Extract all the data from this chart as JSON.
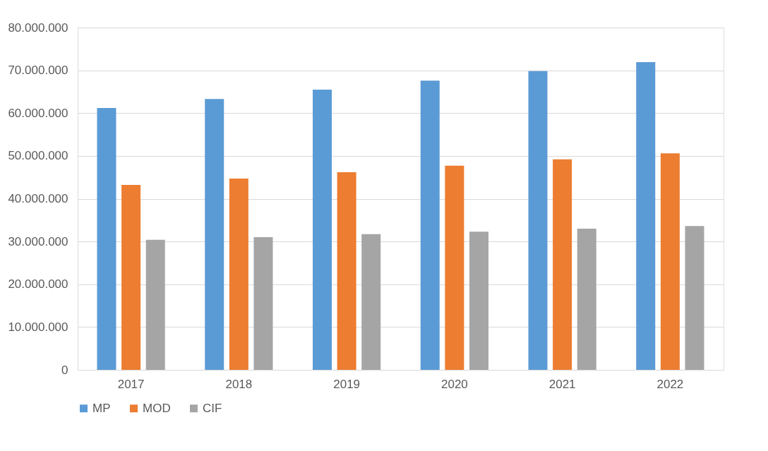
{
  "chart_data": {
    "type": "bar",
    "categories": [
      "2017",
      "2018",
      "2019",
      "2020",
      "2021",
      "2022"
    ],
    "series": [
      {
        "name": "MP",
        "color": "#5b9bd5",
        "values": [
          61200000,
          63300000,
          65500000,
          67600000,
          69800000,
          71900000
        ]
      },
      {
        "name": "MOD",
        "color": "#ed7d31",
        "values": [
          43200000,
          44700000,
          46200000,
          47700000,
          49200000,
          50600000
        ]
      },
      {
        "name": "CIF",
        "color": "#a5a5a5",
        "values": [
          30400000,
          31000000,
          31700000,
          32300000,
          33000000,
          33600000
        ]
      }
    ],
    "ylim": [
      0,
      80000000
    ],
    "yticks": [
      0,
      {
        "value": 10000000,
        "label": "10.000.000"
      },
      {
        "value": 20000000,
        "label": "20.000.000"
      },
      {
        "value": 30000000,
        "label": "30.000.000"
      },
      {
        "value": 40000000,
        "label": "40.000.000"
      },
      {
        "value": 50000000,
        "label": "50.000.000"
      },
      {
        "value": 60000000,
        "label": "60.000.000"
      },
      {
        "value": 70000000,
        "label": "70.000.000"
      },
      {
        "value": 80000000,
        "label": "80.000.000"
      }
    ],
    "grid": "y",
    "legend": "bottom"
  }
}
